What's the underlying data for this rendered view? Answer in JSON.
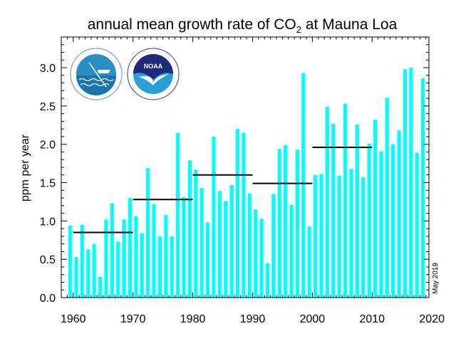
{
  "chart_data": {
    "type": "bar",
    "title_main": "annual mean growth rate of CO",
    "title_sub": "2",
    "title_rest": " at Mauna Loa",
    "ylabel": "ppm per year",
    "xlabel": "",
    "annotation": "May 2019",
    "xlim": [
      1958,
      2019.5
    ],
    "ylim": [
      0,
      3.4
    ],
    "xticks": [
      1960,
      1970,
      1980,
      1990,
      2000,
      2010,
      2020
    ],
    "yticks": [
      "0.0",
      "0.5",
      "1.0",
      "1.5",
      "2.0",
      "2.5",
      "3.0"
    ],
    "grid": false,
    "bar_color": "#00FFFF",
    "decade_line_color": "#000000",
    "years": [
      1959,
      1960,
      1961,
      1962,
      1963,
      1964,
      1965,
      1966,
      1967,
      1968,
      1969,
      1970,
      1971,
      1972,
      1973,
      1974,
      1975,
      1976,
      1977,
      1978,
      1979,
      1980,
      1981,
      1982,
      1983,
      1984,
      1985,
      1986,
      1987,
      1988,
      1989,
      1990,
      1991,
      1992,
      1993,
      1994,
      1995,
      1996,
      1997,
      1998,
      1999,
      2000,
      2001,
      2002,
      2003,
      2004,
      2005,
      2006,
      2007,
      2008,
      2009,
      2010,
      2011,
      2012,
      2013,
      2014,
      2015,
      2016,
      2017,
      2018
    ],
    "values": [
      0.94,
      0.53,
      0.95,
      0.63,
      0.7,
      0.27,
      1.02,
      1.23,
      0.73,
      1.02,
      1.3,
      1.06,
      0.84,
      1.69,
      1.22,
      0.8,
      1.08,
      0.8,
      2.15,
      1.31,
      1.79,
      1.67,
      1.43,
      0.98,
      2.1,
      1.39,
      1.26,
      1.47,
      2.2,
      2.15,
      1.36,
      1.15,
      1.03,
      0.45,
      1.35,
      1.94,
      1.99,
      1.21,
      1.93,
      2.93,
      0.93,
      1.6,
      1.61,
      2.49,
      2.27,
      1.59,
      2.53,
      1.68,
      2.26,
      1.57,
      2.01,
      2.32,
      1.91,
      2.61,
      2.0,
      2.18,
      2.98,
      3.0,
      1.89,
      2.86
    ],
    "decade_means": [
      {
        "start": 1960,
        "end": 1970,
        "value": 0.85
      },
      {
        "start": 1970,
        "end": 1980,
        "value": 1.28
      },
      {
        "start": 1980,
        "end": 1990,
        "value": 1.6
      },
      {
        "start": 1990,
        "end": 2000,
        "value": 1.49
      },
      {
        "start": 2000,
        "end": 2010,
        "value": 1.96
      }
    ]
  },
  "logos": {
    "left": "SCRIPPS INSTITUTION OF OCEANOGRAPHY · UCSD",
    "right": "NOAA · NATIONAL OCEANIC AND ATMOSPHERIC ADMINISTRATION · U.S. DEPARTMENT OF COMMERCE"
  }
}
